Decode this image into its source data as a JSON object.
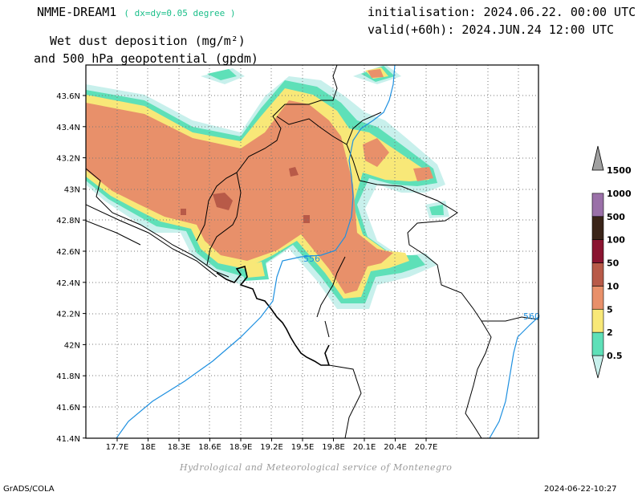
{
  "header": {
    "model_name": "NMME-DREAM1",
    "resolution": "( dx=dy=0.05 degree )",
    "init_label": "initialisation: 2024.06.22. 00:00 UTC",
    "valid_label": "valid(+60h): 2024.JUN.24 12:00 UTC",
    "title_line1": "Wet dust deposition (mg/m²)",
    "title_line2": "and 500 hPa geopotential (gpdm)"
  },
  "map": {
    "x_ticks": [
      "17.7E",
      "18E",
      "18.3E",
      "18.6E",
      "18.9E",
      "19.2E",
      "19.5E",
      "19.8E",
      "20.1E",
      "20.4E",
      "20.7E"
    ],
    "y_ticks": [
      "43.6N",
      "43.4N",
      "43.2N",
      "43N",
      "42.8N",
      "42.6N",
      "42.4N",
      "42.2N",
      "42N",
      "41.8N",
      "41.6N",
      "41.4N"
    ],
    "contour_labels": [
      "556",
      "560"
    ],
    "contour_color": "#1e90e0"
  },
  "colorbar": {
    "labels": [
      "0.5",
      "2",
      "5",
      "10",
      "50",
      "100",
      "500",
      "1000",
      "1500"
    ],
    "colors": [
      "#c8f0ec",
      "#5ee0b8",
      "#f8e878",
      "#e8906a",
      "#b85a48",
      "#8a1430",
      "#3a2418",
      "#9a70a8",
      "#a0a0a0"
    ]
  },
  "credit": "Hydrological and Meteorological service of Montenegro",
  "footer": {
    "left": "GrADS/COLA",
    "right": "2024-06-22-10:27"
  }
}
